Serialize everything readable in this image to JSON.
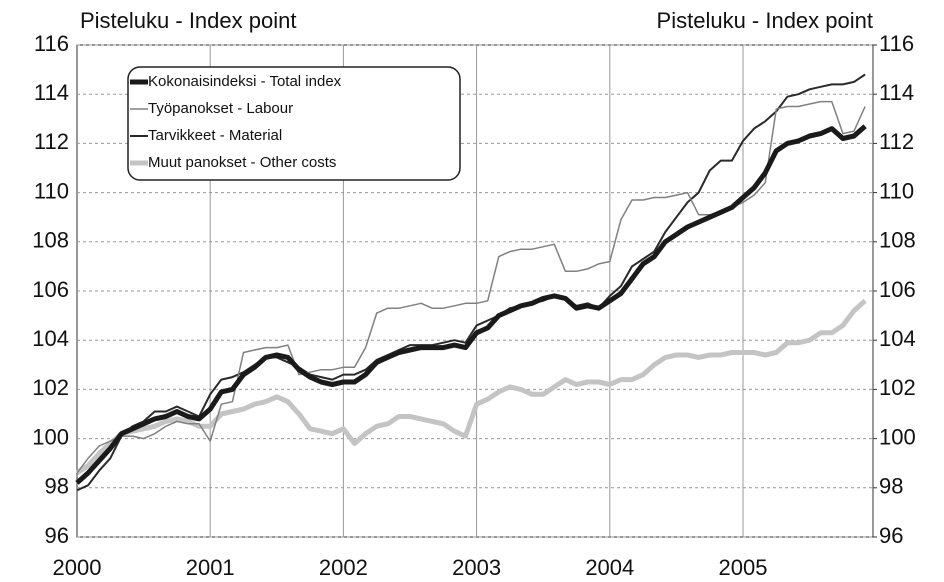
{
  "chart_data": {
    "type": "line",
    "y_label": "Pisteluku - Index point",
    "y2_label": "Pisteluku - Index point",
    "categories": [
      "2000",
      null,
      null,
      null,
      null,
      null,
      null,
      null,
      null,
      null,
      null,
      null,
      "2001",
      null,
      null,
      null,
      null,
      null,
      null,
      null,
      null,
      null,
      null,
      null,
      "2002",
      null,
      null,
      null,
      null,
      null,
      null,
      null,
      null,
      null,
      null,
      null,
      "2003",
      null,
      null,
      null,
      null,
      null,
      null,
      null,
      null,
      null,
      null,
      null,
      "2004",
      null,
      null,
      null,
      null,
      null,
      null,
      null,
      null,
      null,
      null,
      null,
      "2005",
      null,
      null,
      null,
      null,
      null,
      null,
      null,
      null,
      null,
      null,
      null
    ],
    "series": [
      {
        "name": "Kokonaisindeksi - Total index",
        "color": "#1a1a1a",
        "width": 5,
        "values": [
          98.2,
          98.6,
          99.1,
          99.6,
          100.2,
          100.4,
          100.6,
          100.8,
          100.9,
          101.1,
          100.9,
          100.8,
          101.2,
          101.9,
          102.0,
          102.6,
          102.9,
          103.3,
          103.4,
          103.3,
          102.8,
          102.5,
          102.3,
          102.2,
          102.3,
          102.3,
          102.6,
          103.1,
          103.3,
          103.5,
          103.6,
          103.7,
          103.7,
          103.7,
          103.8,
          103.7,
          104.3,
          104.5,
          105.0,
          105.2,
          105.4,
          105.5,
          105.7,
          105.8,
          105.7,
          105.3,
          105.4,
          105.3,
          105.6,
          105.9,
          106.5,
          107.1,
          107.4,
          108.0,
          108.3,
          108.6,
          108.8,
          109.0,
          109.2,
          109.4,
          109.8,
          110.2,
          110.8,
          111.7,
          112.0,
          112.1,
          112.3,
          112.4,
          112.6,
          112.2,
          112.3,
          112.7
        ]
      },
      {
        "name": "Työpanokset - Labour",
        "color": "#808080",
        "width": 1.5,
        "values": [
          98.6,
          99.2,
          99.7,
          99.9,
          100.1,
          100.1,
          100.0,
          100.2,
          100.5,
          100.7,
          100.6,
          100.6,
          99.9,
          101.4,
          101.5,
          103.5,
          103.6,
          103.7,
          103.7,
          103.8,
          102.6,
          102.7,
          102.8,
          102.8,
          102.9,
          102.9,
          103.7,
          105.1,
          105.3,
          105.3,
          105.4,
          105.5,
          105.3,
          105.3,
          105.4,
          105.5,
          105.5,
          105.6,
          107.4,
          107.6,
          107.7,
          107.7,
          107.8,
          107.9,
          106.8,
          106.8,
          106.9,
          107.1,
          107.2,
          108.9,
          109.7,
          109.7,
          109.8,
          109.8,
          109.9,
          110.0,
          109.1,
          109.1,
          109.2,
          109.4,
          109.6,
          109.9,
          110.4,
          113.4,
          113.5,
          113.5,
          113.6,
          113.7,
          113.7,
          112.4,
          112.5,
          113.5
        ]
      },
      {
        "name": "Tarvikkeet - Material",
        "color": "#2a2a2a",
        "width": 2,
        "values": [
          97.9,
          98.1,
          98.7,
          99.2,
          100.1,
          100.5,
          100.7,
          101.1,
          101.1,
          101.3,
          101.1,
          100.9,
          101.8,
          102.4,
          102.5,
          102.7,
          103.0,
          103.3,
          103.3,
          103.1,
          102.9,
          102.6,
          102.5,
          102.4,
          102.6,
          102.6,
          102.8,
          103.2,
          103.4,
          103.6,
          103.8,
          103.8,
          103.8,
          103.9,
          104.0,
          103.9,
          104.6,
          104.8,
          105.0,
          105.3,
          105.4,
          105.5,
          105.6,
          105.8,
          105.7,
          105.4,
          105.5,
          105.3,
          105.8,
          106.2,
          107.0,
          107.3,
          107.6,
          108.4,
          109.0,
          109.6,
          110.0,
          110.9,
          111.3,
          111.3,
          112.1,
          112.6,
          112.9,
          113.3,
          113.9,
          114.0,
          114.2,
          114.3,
          114.4,
          114.4,
          114.5,
          114.8
        ]
      },
      {
        "name": "Muut panokset - Other costs",
        "color": "#c4c4c4",
        "width": 5,
        "values": [
          98.6,
          98.9,
          99.4,
          99.8,
          100.2,
          100.3,
          100.4,
          100.5,
          100.7,
          100.8,
          100.7,
          100.5,
          100.5,
          101.0,
          101.1,
          101.2,
          101.4,
          101.5,
          101.7,
          101.5,
          101.0,
          100.4,
          100.3,
          100.2,
          100.4,
          99.8,
          100.2,
          100.5,
          100.6,
          100.9,
          100.9,
          100.8,
          100.7,
          100.6,
          100.3,
          100.1,
          101.4,
          101.6,
          101.9,
          102.1,
          102.0,
          101.8,
          101.8,
          102.1,
          102.4,
          102.2,
          102.3,
          102.3,
          102.2,
          102.4,
          102.4,
          102.6,
          103.0,
          103.3,
          103.4,
          103.4,
          103.3,
          103.4,
          103.4,
          103.5,
          103.5,
          103.5,
          103.4,
          103.5,
          103.9,
          103.9,
          104.0,
          104.3,
          104.3,
          104.6,
          105.2,
          105.6
        ]
      }
    ],
    "ylim": [
      96,
      116
    ],
    "yticks": [
      96,
      98,
      100,
      102,
      104,
      106,
      108,
      110,
      112,
      114,
      116
    ],
    "y2lim": [
      96,
      116
    ],
    "y2ticks": [
      96,
      98,
      100,
      102,
      104,
      106,
      108,
      110,
      112,
      114,
      116
    ],
    "grid": true,
    "legend": "upper left"
  }
}
